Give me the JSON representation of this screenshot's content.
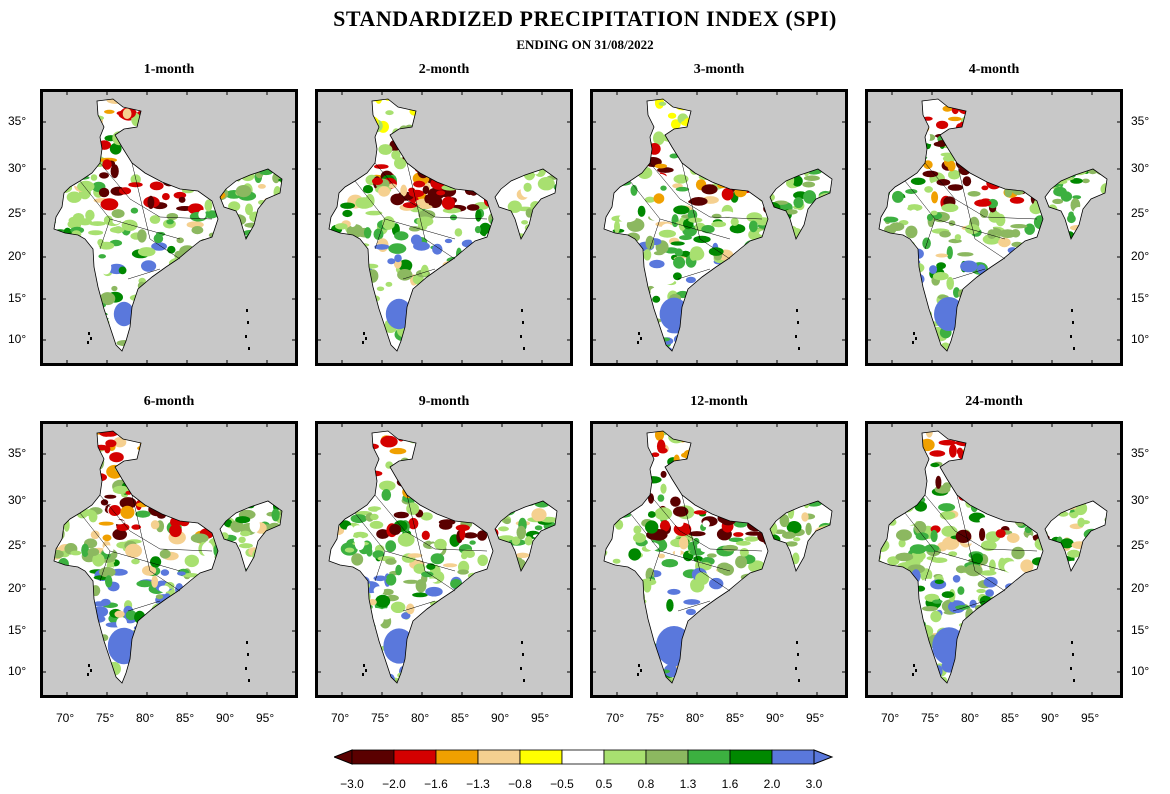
{
  "header": {
    "title": "STANDARDIZED PRECIPITATION INDEX (SPI)",
    "subtitle": "ENDING ON 31/08/2022"
  },
  "panels": [
    {
      "label": "1-month",
      "dry_north": 1.0,
      "wet_south": 0.35
    },
    {
      "label": "2-month",
      "dry_north": 1.0,
      "wet_south": 0.6
    },
    {
      "label": "3-month",
      "dry_north": 0.85,
      "wet_south": 0.7
    },
    {
      "label": "4-month",
      "dry_north": 0.8,
      "wet_south": 0.75
    },
    {
      "label": "6-month",
      "dry_north": 0.9,
      "wet_south": 0.85
    },
    {
      "label": "9-month",
      "dry_north": 0.8,
      "wet_south": 0.8
    },
    {
      "label": "12-month",
      "dry_north": 0.55,
      "wet_south": 1.0
    },
    {
      "label": "24-month",
      "dry_north": 0.45,
      "wet_south": 0.9
    }
  ],
  "axes": {
    "lat_labels": [
      "35°",
      "30°",
      "25°",
      "20°",
      "15°",
      "10°"
    ],
    "lon_labels": [
      "70°",
      "75°",
      "80°",
      "85°",
      "90°",
      "95°"
    ]
  },
  "colorbar": {
    "labels": [
      "−3.0",
      "−2.0",
      "−1.6",
      "−1.3",
      "−0.8",
      "−0.5",
      "0.5",
      "0.8",
      "1.3",
      "1.6",
      "2.0",
      "3.0"
    ],
    "colors": [
      "#5a0000",
      "#d40000",
      "#f0a000",
      "#f5d090",
      "#ffff00",
      "#ffffff",
      "#a8e070",
      "#8cb860",
      "#3cb040",
      "#008800",
      "#5a78dc"
    ],
    "under_color": "#5a0000",
    "over_color": "#5a78dc"
  },
  "style": {
    "ocean": "#c8c8c8",
    "land": "#ffffff"
  }
}
